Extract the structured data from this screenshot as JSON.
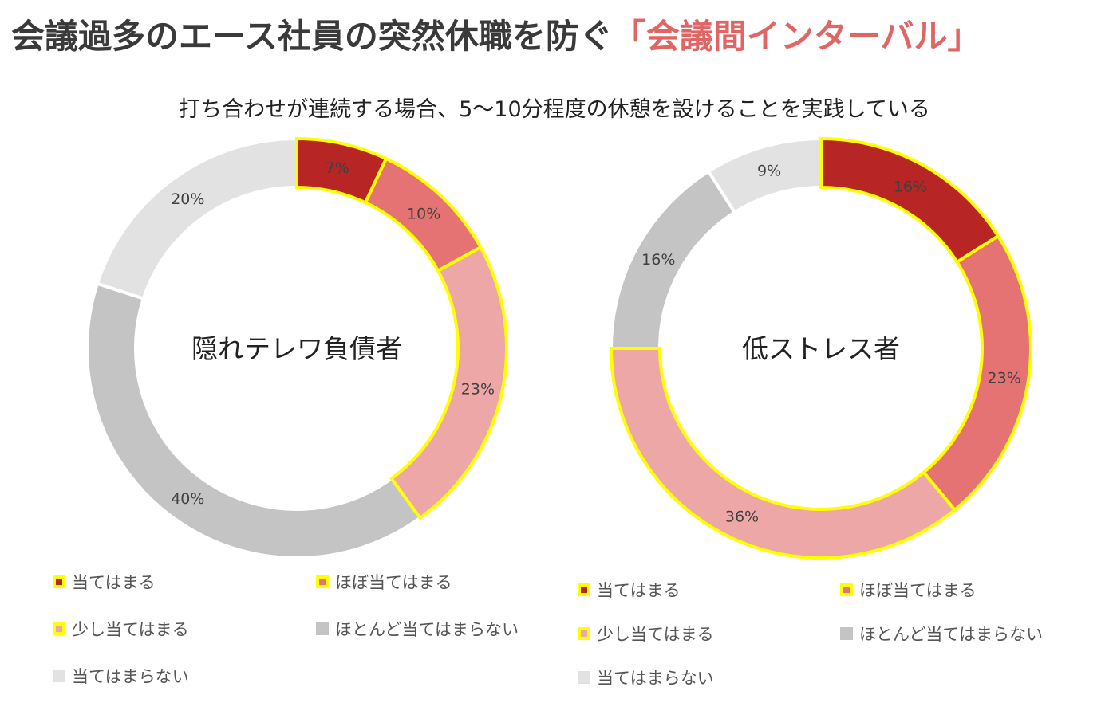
{
  "title": {
    "main": "会議過多のエース社員の突然休職を防ぐ",
    "highlight": "「会議間インターバル」"
  },
  "subtitle": "打ち合わせが連続する場合、5〜10分程度の休憩を設けることを実践している",
  "colors": {
    "c1": "#b82525",
    "c2": "#e57373",
    "c3": "#eda7a7",
    "c4": "#c4c4c4",
    "c5": "#e2e2e2",
    "highlight_border": "#ffff00"
  },
  "chart_data": [
    {
      "type": "pie",
      "center_label": "隠れテレワ負債者",
      "categories": [
        "当てはまる",
        "ほぼ当てはまる",
        "少し当てはまる",
        "ほとんど当てはまらない",
        "当てはまらない"
      ],
      "values": [
        7,
        10,
        23,
        40,
        20
      ],
      "data_labels": [
        "7%",
        "10%",
        "23%",
        "40%",
        "20%"
      ],
      "highlighted": [
        true,
        true,
        true,
        false,
        false
      ],
      "legend": "bottom"
    },
    {
      "type": "pie",
      "center_label": "低ストレス者",
      "categories": [
        "当てはまる",
        "ほぼ当てはまる",
        "少し当てはまる",
        "ほとんど当てはまらない",
        "当てはまらない"
      ],
      "values": [
        16,
        23,
        36,
        16,
        9
      ],
      "data_labels": [
        "16%",
        "23%",
        "36%",
        "16%",
        "9%"
      ],
      "highlighted": [
        true,
        true,
        true,
        false,
        false
      ],
      "legend": "bottom"
    }
  ]
}
